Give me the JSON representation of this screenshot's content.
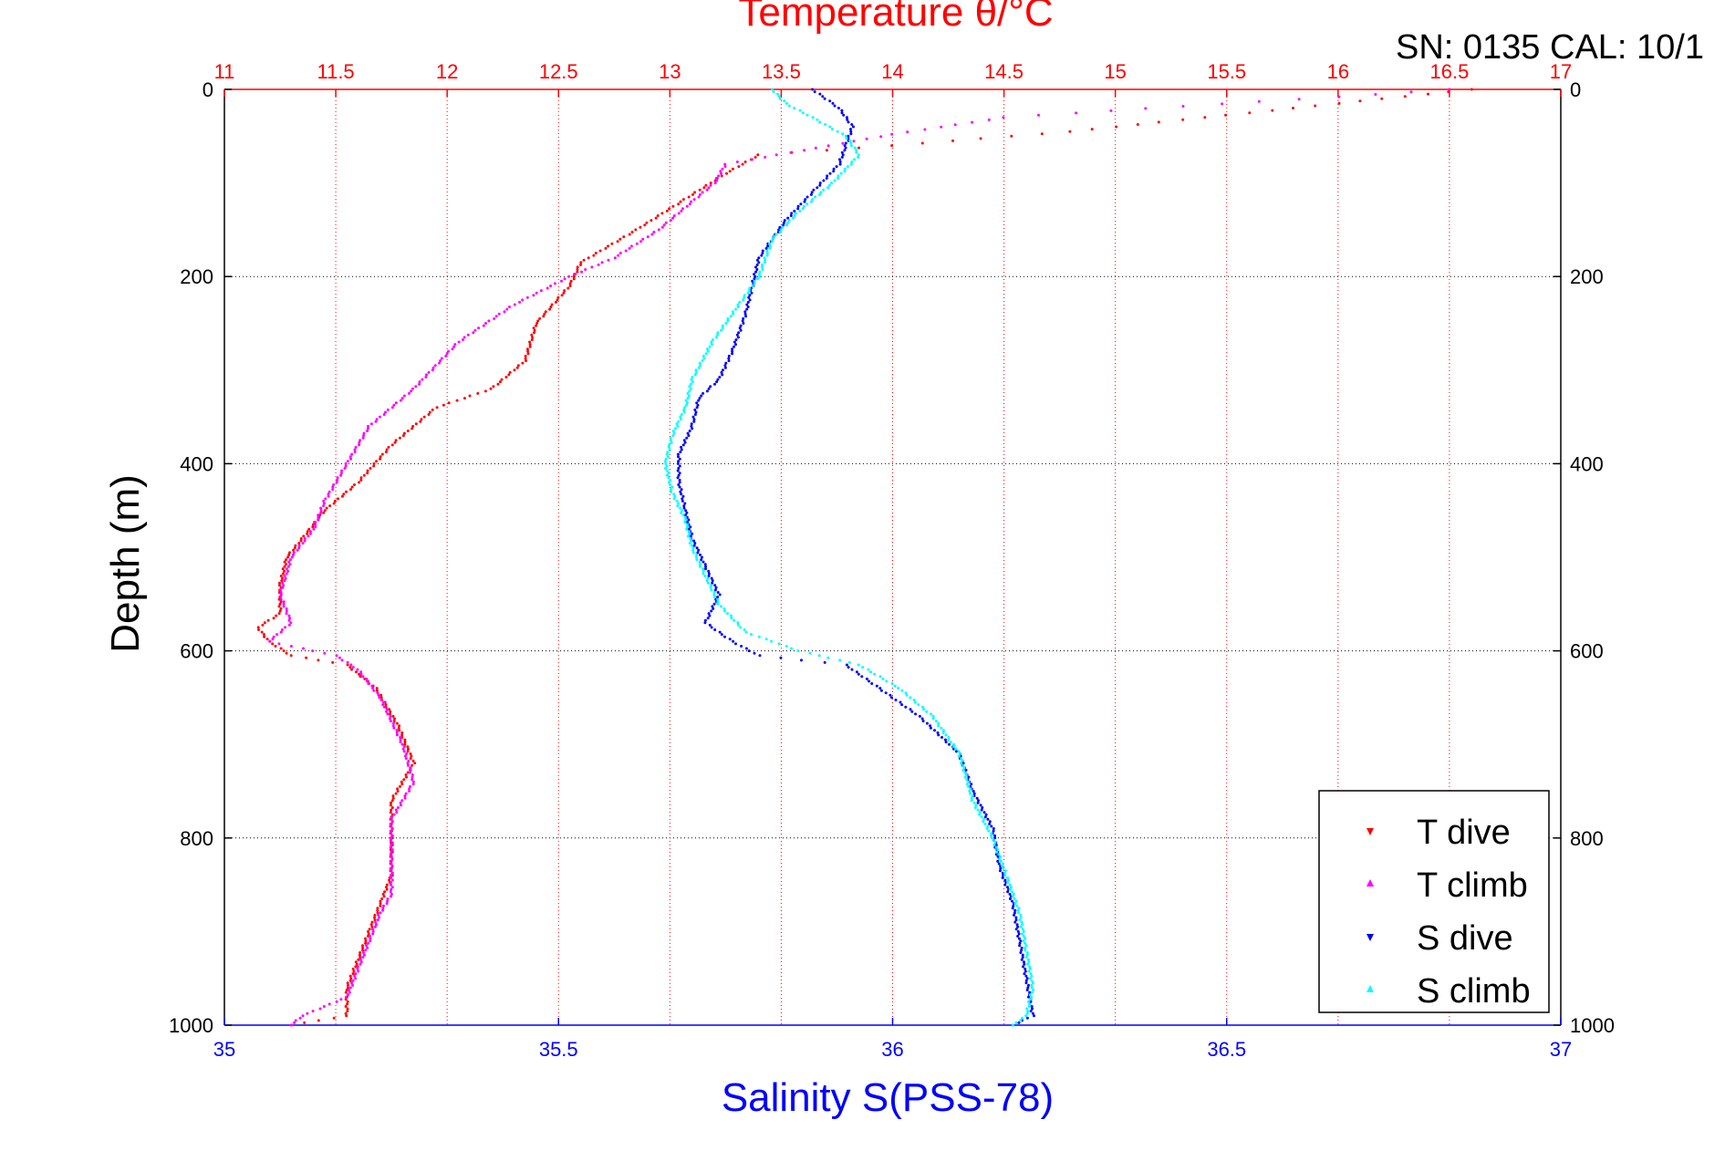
{
  "chart_data": {
    "type": "scatter",
    "title": "Temperature θ/°C",
    "header_note": "SN: 0135  CAL: 10/1",
    "ylabel": "Depth (m)",
    "xlabel": "Salinity S(PSS-78)",
    "ylim": [
      0,
      1000
    ],
    "y_reversed": true,
    "temperature_axis": {
      "range": [
        11,
        17
      ],
      "ticks": [
        "11",
        "11.5",
        "12",
        "12.5",
        "13",
        "13.5",
        "14",
        "14.5",
        "15",
        "15.5",
        "16",
        "16.5",
        "17"
      ],
      "color": "#ff0000"
    },
    "salinity_axis": {
      "range": [
        35,
        37
      ],
      "ticks": [
        "35",
        "35.5",
        "36",
        "36.5",
        "37"
      ],
      "color": "#0000ff"
    },
    "depth_ticks": [
      "0",
      "200",
      "400",
      "600",
      "800",
      "1000"
    ],
    "grid": true,
    "legend_position": "bottom-right",
    "series": [
      {
        "name": "T dive",
        "axis": "temperature",
        "color": "#ff0000",
        "marker": "triangle-down",
        "points": [
          [
            16.6,
            0
          ],
          [
            16.2,
            10
          ],
          [
            15.6,
            25
          ],
          [
            14.8,
            45
          ],
          [
            14.0,
            60
          ],
          [
            13.4,
            70
          ],
          [
            13.25,
            90
          ],
          [
            13.05,
            120
          ],
          [
            12.85,
            150
          ],
          [
            12.6,
            185
          ],
          [
            12.55,
            210
          ],
          [
            12.4,
            250
          ],
          [
            12.35,
            290
          ],
          [
            12.2,
            320
          ],
          [
            11.95,
            340
          ],
          [
            11.75,
            380
          ],
          [
            11.6,
            420
          ],
          [
            11.45,
            450
          ],
          [
            11.35,
            480
          ],
          [
            11.28,
            500
          ],
          [
            11.25,
            530
          ],
          [
            11.25,
            560
          ],
          [
            11.15,
            575
          ],
          [
            11.2,
            590
          ],
          [
            11.3,
            605
          ],
          [
            11.55,
            615
          ],
          [
            11.68,
            640
          ],
          [
            11.78,
            680
          ],
          [
            11.85,
            720
          ],
          [
            11.75,
            760
          ],
          [
            11.75,
            800
          ],
          [
            11.75,
            840
          ],
          [
            11.7,
            870
          ],
          [
            11.65,
            900
          ],
          [
            11.6,
            930
          ],
          [
            11.55,
            960
          ],
          [
            11.55,
            990
          ],
          [
            11.3,
            1000
          ]
        ]
      },
      {
        "name": "T climb",
        "axis": "temperature",
        "color": "#ff00ff",
        "marker": "triangle-up",
        "points": [
          [
            16.5,
            0
          ],
          [
            16.0,
            8
          ],
          [
            15.3,
            18
          ],
          [
            14.5,
            30
          ],
          [
            14.0,
            48
          ],
          [
            13.6,
            65
          ],
          [
            13.25,
            80
          ],
          [
            13.2,
            100
          ],
          [
            13.1,
            120
          ],
          [
            12.95,
            150
          ],
          [
            12.75,
            180
          ],
          [
            12.55,
            200
          ],
          [
            12.3,
            230
          ],
          [
            12.05,
            270
          ],
          [
            11.85,
            320
          ],
          [
            11.65,
            360
          ],
          [
            11.55,
            400
          ],
          [
            11.45,
            440
          ],
          [
            11.4,
            470
          ],
          [
            11.3,
            500
          ],
          [
            11.25,
            540
          ],
          [
            11.3,
            570
          ],
          [
            11.2,
            590
          ],
          [
            11.5,
            605
          ],
          [
            11.6,
            620
          ],
          [
            11.7,
            650
          ],
          [
            11.8,
            700
          ],
          [
            11.85,
            740
          ],
          [
            11.75,
            780
          ],
          [
            11.75,
            820
          ],
          [
            11.75,
            860
          ],
          [
            11.7,
            880
          ],
          [
            11.65,
            910
          ],
          [
            11.6,
            940
          ],
          [
            11.55,
            970
          ],
          [
            11.35,
            990
          ],
          [
            11.3,
            1000
          ]
        ]
      },
      {
        "name": "S dive",
        "axis": "salinity",
        "color": "#0000ff",
        "marker": "triangle-down",
        "points": [
          [
            35.88,
            0
          ],
          [
            35.92,
            20
          ],
          [
            35.94,
            40
          ],
          [
            35.93,
            60
          ],
          [
            35.92,
            80
          ],
          [
            35.88,
            110
          ],
          [
            35.84,
            140
          ],
          [
            35.82,
            160
          ],
          [
            35.8,
            180
          ],
          [
            35.79,
            210
          ],
          [
            35.78,
            240
          ],
          [
            35.76,
            280
          ],
          [
            35.74,
            310
          ],
          [
            35.71,
            330
          ],
          [
            35.7,
            360
          ],
          [
            35.68,
            390
          ],
          [
            35.68,
            420
          ],
          [
            35.69,
            450
          ],
          [
            35.7,
            480
          ],
          [
            35.72,
            510
          ],
          [
            35.74,
            540
          ],
          [
            35.72,
            570
          ],
          [
            35.76,
            590
          ],
          [
            35.8,
            605
          ],
          [
            35.93,
            615
          ],
          [
            35.98,
            640
          ],
          [
            36.04,
            670
          ],
          [
            36.1,
            710
          ],
          [
            36.12,
            750
          ],
          [
            36.15,
            790
          ],
          [
            36.16,
            830
          ],
          [
            36.18,
            870
          ],
          [
            36.19,
            910
          ],
          [
            36.2,
            950
          ],
          [
            36.21,
            990
          ],
          [
            36.18,
            1000
          ]
        ]
      },
      {
        "name": "S climb",
        "axis": "salinity",
        "color": "#00ffff",
        "marker": "triangle-up",
        "points": [
          [
            35.82,
            0
          ],
          [
            35.84,
            15
          ],
          [
            35.88,
            30
          ],
          [
            35.93,
            50
          ],
          [
            35.95,
            70
          ],
          [
            35.91,
            100
          ],
          [
            35.86,
            130
          ],
          [
            35.82,
            160
          ],
          [
            35.8,
            200
          ],
          [
            35.77,
            230
          ],
          [
            35.73,
            270
          ],
          [
            35.7,
            310
          ],
          [
            35.69,
            340
          ],
          [
            35.67,
            370
          ],
          [
            35.66,
            400
          ],
          [
            35.67,
            430
          ],
          [
            35.69,
            460
          ],
          [
            35.7,
            490
          ],
          [
            35.72,
            520
          ],
          [
            35.74,
            550
          ],
          [
            35.78,
            580
          ],
          [
            35.86,
            600
          ],
          [
            35.95,
            615
          ],
          [
            36.01,
            640
          ],
          [
            36.06,
            670
          ],
          [
            36.1,
            710
          ],
          [
            36.12,
            760
          ],
          [
            36.15,
            800
          ],
          [
            36.17,
            840
          ],
          [
            36.19,
            880
          ],
          [
            36.2,
            920
          ],
          [
            36.21,
            960
          ],
          [
            36.2,
            990
          ],
          [
            36.18,
            1000
          ]
        ]
      }
    ]
  }
}
